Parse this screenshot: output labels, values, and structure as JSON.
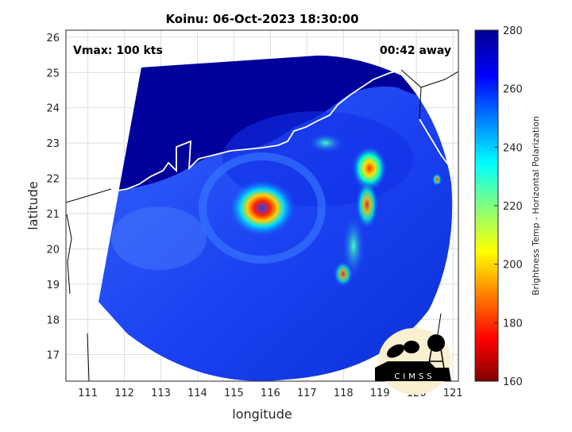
{
  "title": "Koinu: 06-Oct-2023 18:30:00",
  "vmax_label": "Vmax: 100 kts",
  "time_label": "00:42 away",
  "xlabel": "longitude",
  "ylabel": "latitude",
  "colorbar_label": "Brightness Temp - Horizontal Polarization",
  "logo_text": "CIMSS",
  "x_ticks": [
    "111",
    "112",
    "113",
    "114",
    "115",
    "116",
    "117",
    "118",
    "119",
    "120",
    "121"
  ],
  "y_ticks": [
    "17",
    "18",
    "19",
    "20",
    "21",
    "22",
    "23",
    "24",
    "25",
    "26"
  ],
  "cbar_ticks": [
    "160",
    "180",
    "200",
    "220",
    "240",
    "260",
    "280"
  ],
  "chart_data": {
    "type": "heatmap",
    "xlim": [
      110.4,
      121.15
    ],
    "ylim": [
      16.25,
      26.2
    ],
    "clim": [
      160,
      280
    ],
    "colormap": "jet",
    "grid": true,
    "storm_center": {
      "lon": 115.7,
      "lat": 21.1
    }
  },
  "colors": {
    "land_cold": "#00008f",
    "ocean": "#1a4cff",
    "coast": "#ffffff"
  }
}
